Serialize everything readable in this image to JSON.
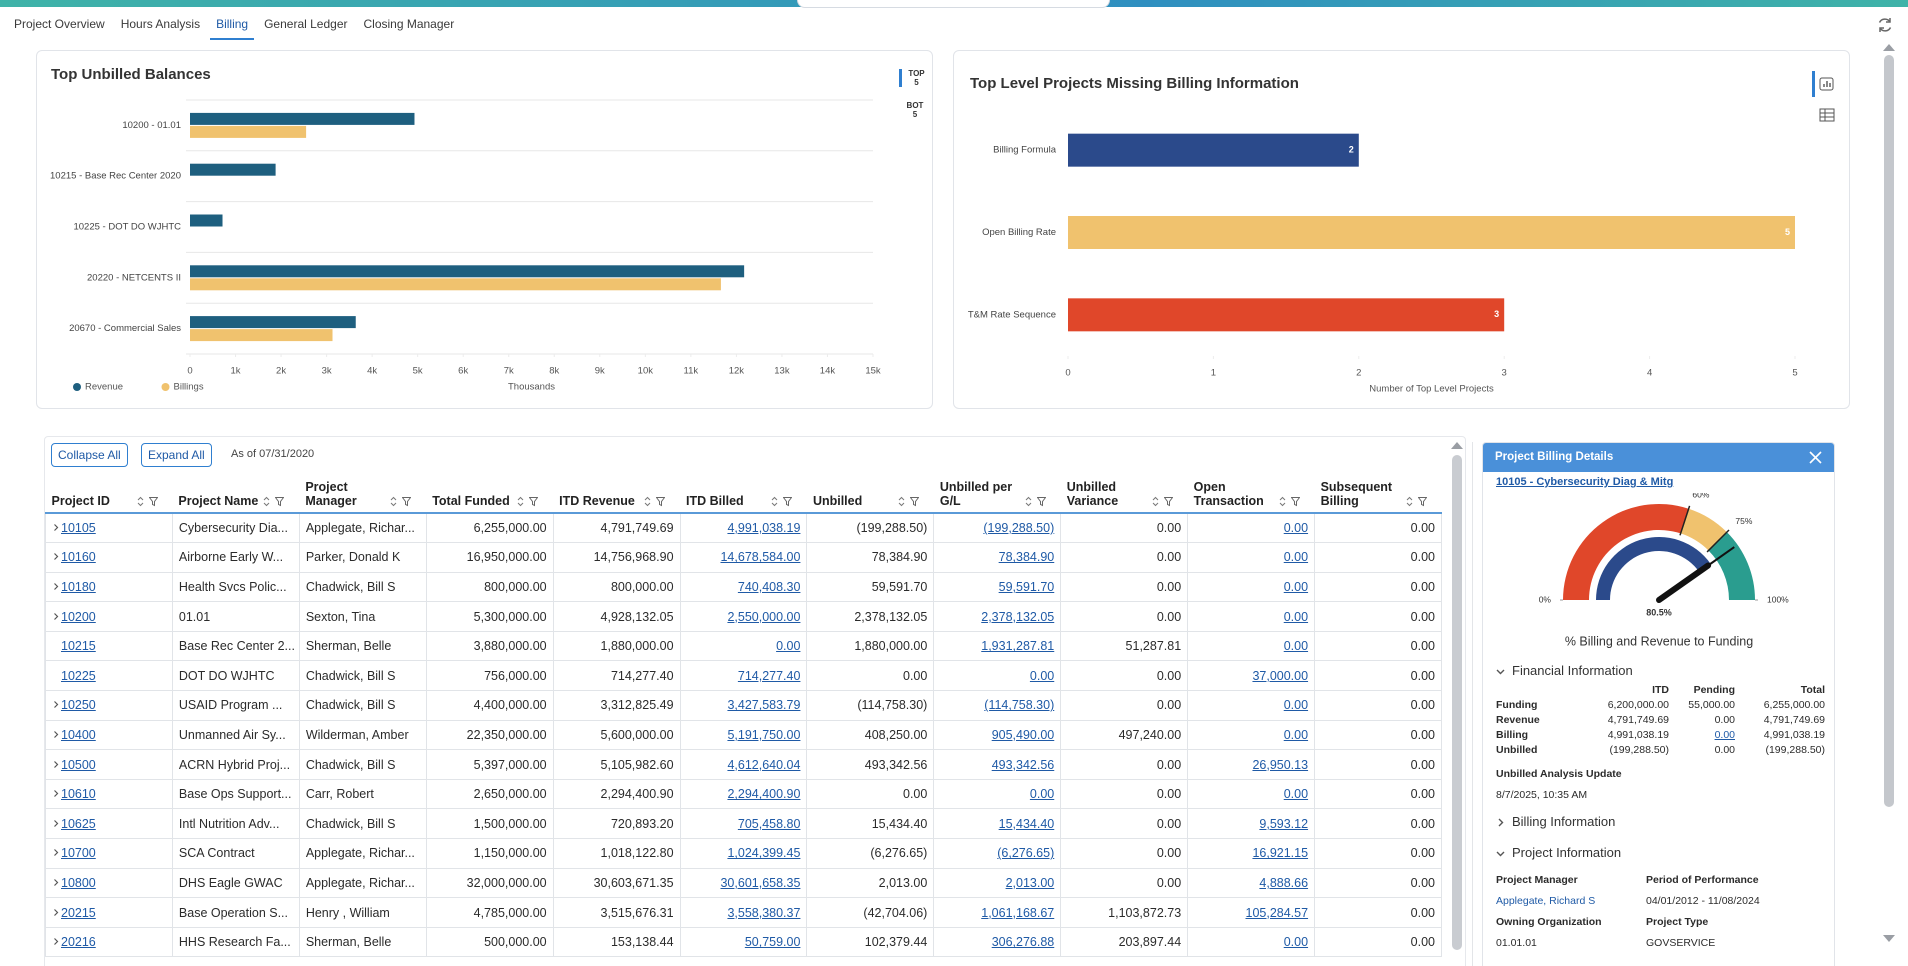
{
  "tabs": [
    {
      "label": "Project Overview"
    },
    {
      "label": "Hours Analysis"
    },
    {
      "label": "Billing",
      "active": true
    },
    {
      "label": "General Ledger"
    },
    {
      "label": "Closing Manager"
    }
  ],
  "chart_data": [
    {
      "type": "bar",
      "orientation": "horizontal",
      "title": "Top Unbilled Balances",
      "categories": [
        "10200 - 01.01",
        "10215 - Base Rec Center 2020",
        "10225 - DOT DO WJHTC",
        "20220 - NETCENTS II",
        "20670 - Commercial Sales"
      ],
      "series": [
        {
          "name": "Revenue",
          "color": "#1e5f7f",
          "values": [
            4930,
            1880,
            714,
            12170,
            3640
          ]
        },
        {
          "name": "Billings",
          "color": "#f0c26e",
          "values": [
            2550,
            0,
            0,
            11660,
            3130
          ]
        }
      ],
      "xlim": [
        0,
        15000
      ],
      "xticks": [
        0,
        {
          "value": 1000,
          "label": "1k"
        },
        {
          "value": 2000,
          "label": "2k"
        },
        {
          "value": 3000,
          "label": "3k"
        },
        {
          "value": 4000,
          "label": "4k"
        },
        {
          "value": 5000,
          "label": "5k"
        },
        {
          "value": 6000,
          "label": "6k"
        },
        {
          "value": 7000,
          "label": "7k"
        },
        {
          "value": 8000,
          "label": "8k"
        },
        {
          "value": 9000,
          "label": "9k"
        },
        {
          "value": 10000,
          "label": "10k"
        },
        {
          "value": 11000,
          "label": "11k"
        },
        {
          "value": 12000,
          "label": "12k"
        },
        {
          "value": 13000,
          "label": "13k"
        },
        {
          "value": 14000,
          "label": "14k"
        },
        {
          "value": 15000,
          "label": "15k"
        }
      ],
      "xlabel": "Thousands",
      "legend": "bottom-left",
      "toggle": [
        "TOP 5",
        "BOT 5"
      ]
    },
    {
      "type": "bar",
      "orientation": "horizontal",
      "title": "Top Level Projects Missing Billing Information",
      "categories": [
        "Billing Formula",
        "Open Billing Rate",
        "T&M Rate Sequence"
      ],
      "values": [
        2,
        5,
        3
      ],
      "colors": [
        "#2b4a8b",
        "#f0c26e",
        "#e0472a"
      ],
      "data_labels": true,
      "xlim": [
        0,
        5
      ],
      "xticks": [
        0,
        1,
        2,
        3,
        4,
        5
      ],
      "xlabel": "Number of Top Level Projects"
    },
    {
      "type": "gauge",
      "title": "% Billing and Revenue to Funding",
      "value": 80.5,
      "value_label": "80.5%",
      "value_color": "#2b4a8b",
      "lim": [
        0,
        100
      ],
      "ticks": [
        {
          "value": 0,
          "label": "0%"
        },
        {
          "value": 60,
          "label": "60%"
        },
        {
          "value": 75,
          "label": "75%"
        },
        {
          "value": 100,
          "label": "100%"
        }
      ],
      "band_colors": [
        "#e0472a",
        "#f0c26e",
        "#2a9d8f"
      ]
    }
  ],
  "toolbar": {
    "collapse": "Collapse All",
    "expand": "Expand All",
    "as_of": "As of 07/31/2020"
  },
  "table": {
    "columns": [
      {
        "label": "Project ID",
        "link": true
      },
      {
        "label": "Project Name"
      },
      {
        "label": "Project Manager"
      },
      {
        "label": "Total Funded",
        "numeric": true
      },
      {
        "label": "ITD Revenue",
        "numeric": true
      },
      {
        "label": "ITD Billed",
        "numeric": true,
        "link": true
      },
      {
        "label": "Unbilled",
        "numeric": true
      },
      {
        "label": "Unbilled per G/L",
        "numeric": true,
        "link": true
      },
      {
        "label": "Unbilled Variance",
        "numeric": true
      },
      {
        "label": "Open Transaction",
        "numeric": true,
        "link": true
      },
      {
        "label": "Subsequent Billing",
        "numeric": true
      }
    ],
    "rows": [
      {
        "expand": true,
        "cells": [
          "10105",
          "Cybersecurity Dia...",
          "Applegate, Richar...",
          "6,255,000.00",
          "4,791,749.69",
          "4,991,038.19",
          "(199,288.50)",
          "(199,288.50)",
          "0.00",
          "0.00",
          "0.00"
        ]
      },
      {
        "expand": true,
        "cells": [
          "10160",
          "Airborne Early W...",
          "Parker, Donald K",
          "16,950,000.00",
          "14,756,968.90",
          "14,678,584.00",
          "78,384.90",
          "78,384.90",
          "0.00",
          "0.00",
          "0.00"
        ]
      },
      {
        "expand": true,
        "cells": [
          "10180",
          "Health Svcs Polic...",
          "Chadwick, Bill S",
          "800,000.00",
          "800,000.00",
          "740,408.30",
          "59,591.70",
          "59,591.70",
          "0.00",
          "0.00",
          "0.00"
        ]
      },
      {
        "expand": true,
        "cells": [
          "10200",
          "01.01",
          "Sexton, Tina",
          "5,300,000.00",
          "4,928,132.05",
          "2,550,000.00",
          "2,378,132.05",
          "2,378,132.05",
          "0.00",
          "0.00",
          "0.00"
        ]
      },
      {
        "expand": false,
        "cells": [
          "10215",
          "Base Rec Center 2...",
          "Sherman, Belle",
          "3,880,000.00",
          "1,880,000.00",
          "0.00",
          "1,880,000.00",
          "1,931,287.81",
          "51,287.81",
          "0.00",
          "0.00"
        ]
      },
      {
        "expand": false,
        "cells": [
          "10225",
          "DOT DO WJHTC",
          "Chadwick, Bill S",
          "756,000.00",
          "714,277.40",
          "714,277.40",
          "0.00",
          "0.00",
          "0.00",
          "37,000.00",
          "0.00"
        ]
      },
      {
        "expand": true,
        "cells": [
          "10250",
          "USAID Program ...",
          "Chadwick, Bill S",
          "4,400,000.00",
          "3,312,825.49",
          "3,427,583.79",
          "(114,758.30)",
          "(114,758.30)",
          "0.00",
          "0.00",
          "0.00"
        ]
      },
      {
        "expand": true,
        "cells": [
          "10400",
          "Unmanned Air Sy...",
          "Wilderman, Amber",
          "22,350,000.00",
          "5,600,000.00",
          "5,191,750.00",
          "408,250.00",
          "905,490.00",
          "497,240.00",
          "0.00",
          "0.00"
        ]
      },
      {
        "expand": true,
        "cells": [
          "10500",
          "ACRN Hybrid Proj...",
          "Chadwick, Bill S",
          "5,397,000.00",
          "5,105,982.60",
          "4,612,640.04",
          "493,342.56",
          "493,342.56",
          "0.00",
          "26,950.13",
          "0.00"
        ]
      },
      {
        "expand": true,
        "cells": [
          "10610",
          "Base Ops Support...",
          "Carr, Robert",
          "2,650,000.00",
          "2,294,400.90",
          "2,294,400.90",
          "0.00",
          "0.00",
          "0.00",
          "0.00",
          "0.00"
        ]
      },
      {
        "expand": true,
        "cells": [
          "10625",
          "Intl Nutrition Adv...",
          "Chadwick, Bill S",
          "1,500,000.00",
          "720,893.20",
          "705,458.80",
          "15,434.40",
          "15,434.40",
          "0.00",
          "9,593.12",
          "0.00"
        ]
      },
      {
        "expand": true,
        "cells": [
          "10700",
          "SCA Contract",
          "Applegate, Richar...",
          "1,150,000.00",
          "1,018,122.80",
          "1,024,399.45",
          "(6,276.65)",
          "(6,276.65)",
          "0.00",
          "16,921.15",
          "0.00"
        ]
      },
      {
        "expand": true,
        "cells": [
          "10800",
          "DHS Eagle GWAC",
          "Applegate, Richar...",
          "32,000,000.00",
          "30,603,671.35",
          "30,601,658.35",
          "2,013.00",
          "2,013.00",
          "0.00",
          "4,888.66",
          "0.00"
        ]
      },
      {
        "expand": true,
        "cells": [
          "20215",
          "Base Operation S...",
          "Henry , William",
          "4,785,000.00",
          "3,515,676.31",
          "3,558,380.37",
          "(42,704.06)",
          "1,061,168.67",
          "1,103,872.73",
          "105,284.57",
          "0.00"
        ]
      },
      {
        "expand": true,
        "cells": [
          "20216",
          "HHS Research Fa...",
          "Sherman, Belle",
          "500,000.00",
          "153,138.44",
          "50,759.00",
          "102,379.44",
          "306,276.88",
          "203,897.44",
          "0.00",
          "0.00"
        ]
      }
    ]
  },
  "panel": {
    "title": "Project Billing Details",
    "project_link": "10105 - Cybersecurity Diag & Mitg",
    "financial": {
      "title": "Financial Information",
      "columns": [
        "ITD",
        "Pending",
        "Total"
      ],
      "rows": [
        {
          "label": "Funding",
          "cells": [
            "6,200,000.00",
            "55,000.00",
            "6,255,000.00"
          ]
        },
        {
          "label": "Revenue",
          "cells": [
            "4,791,749.69",
            "0.00",
            "4,791,749.69"
          ]
        },
        {
          "label": "Billing",
          "cells": [
            "4,991,038.19",
            {
              "text": "0.00",
              "link": true
            },
            "4,991,038.19"
          ]
        },
        {
          "label": "Unbilled",
          "cells": [
            "(199,288.50)",
            "0.00",
            "(199,288.50)"
          ]
        }
      ]
    },
    "update_label": "Unbilled Analysis Update",
    "update_value": "8/7/2025, 10:35 AM",
    "billing_section": "Billing Information",
    "project_section": {
      "title": "Project Information",
      "fields": [
        {
          "label": "Project Manager",
          "value": "Applegate, Richard S",
          "link": true
        },
        {
          "label": "Period of Performance",
          "value": "04/01/2012 - 11/08/2024"
        },
        {
          "label": "Owning Organization",
          "value": "01.01.01"
        },
        {
          "label": "Project Type",
          "value": "GOVSERVICE"
        }
      ]
    }
  }
}
